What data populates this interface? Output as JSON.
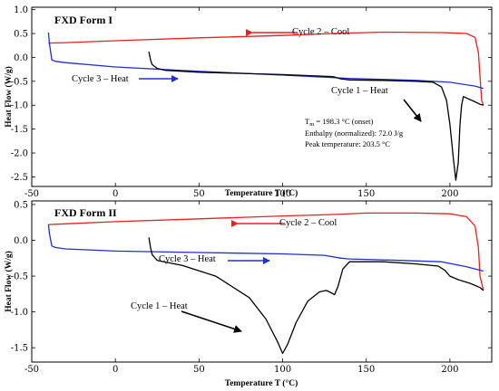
{
  "colors": {
    "cycle1": "#000000",
    "cycle2": "#e82020",
    "cycle3": "#1f2fd6"
  },
  "chart_data": [
    {
      "type": "line",
      "title": "FXD Form I",
      "xlabel": "Temperature T (°C)",
      "ylabel": "Heat Flow (W/g)",
      "xlim": [
        -50,
        225
      ],
      "ylim": [
        -2.7,
        1.05
      ],
      "xticks": [
        -50,
        0,
        50,
        100,
        150,
        200
      ],
      "xtick_labels": [
        "-50",
        "0",
        "50",
        "100",
        "150",
        "200"
      ],
      "yticks": [
        1.0,
        0.5,
        0.0,
        -0.5,
        -1.0,
        -1.5,
        -2.0,
        -2.5
      ],
      "ytick_labels": [
        "1.0",
        "0.5",
        "0.0",
        "-0.5",
        "-1.0",
        "-1.5",
        "-2.0",
        "-2.5"
      ],
      "series": [
        {
          "name": "Cycle 2 – Cool",
          "color_key": "cycle2",
          "points": [
            [
              -40,
              0.3
            ],
            [
              -30,
              0.31
            ],
            [
              0,
              0.35
            ],
            [
              50,
              0.41
            ],
            [
              100,
              0.46
            ],
            [
              130,
              0.5
            ],
            [
              160,
              0.53
            ],
            [
              195,
              0.52
            ],
            [
              210,
              0.5
            ],
            [
              215,
              0.42
            ],
            [
              217,
              0.1
            ],
            [
              218,
              -0.4
            ],
            [
              219,
              -0.9
            ],
            [
              220,
              -1.0
            ]
          ]
        },
        {
          "name": "Cycle 3 – Heat",
          "color_key": "cycle3",
          "points": [
            [
              -40,
              0.52
            ],
            [
              -39.5,
              0.3
            ],
            [
              -38,
              -0.05
            ],
            [
              -36,
              -0.08
            ],
            [
              -30,
              -0.11
            ],
            [
              0,
              -0.2
            ],
            [
              50,
              -0.29
            ],
            [
              100,
              -0.37
            ],
            [
              140,
              -0.44
            ],
            [
              180,
              -0.48
            ],
            [
              200,
              -0.52
            ],
            [
              215,
              -0.6
            ],
            [
              220,
              -0.65
            ]
          ]
        },
        {
          "name": "Cycle 1 – Heat",
          "color_key": "cycle1",
          "points": [
            [
              20,
              0.12
            ],
            [
              21,
              -0.05
            ],
            [
              22,
              -0.15
            ],
            [
              25,
              -0.23
            ],
            [
              30,
              -0.27
            ],
            [
              50,
              -0.31
            ],
            [
              100,
              -0.36
            ],
            [
              130,
              -0.4
            ],
            [
              135,
              -0.45
            ],
            [
              140,
              -0.47
            ],
            [
              160,
              -0.48
            ],
            [
              180,
              -0.5
            ],
            [
              190,
              -0.52
            ],
            [
              195,
              -0.62
            ],
            [
              198,
              -0.9
            ],
            [
              200,
              -1.4
            ],
            [
              202,
              -2.1
            ],
            [
              203.5,
              -2.57
            ],
            [
              205,
              -2.2
            ],
            [
              206,
              -1.4
            ],
            [
              207,
              -1.0
            ],
            [
              208,
              -0.82
            ],
            [
              210,
              -0.85
            ],
            [
              215,
              -0.93
            ],
            [
              218,
              -0.98
            ],
            [
              220,
              -1.0
            ]
          ]
        }
      ],
      "annotations": {
        "cycle2_label": "Cycle 2 – Cool",
        "cycle3_label": "Cycle 3 – Heat",
        "cycle1_label": "Cycle 1 – Heat",
        "tm_symbol": "T",
        "tm_subscript": "m",
        "tm_text": " = 198.3 °C (onset)",
        "enthalpy": "Enthalpy (normalized): 72.0 J/g",
        "peak": "Peak temperature: 203.5 °C"
      }
    },
    {
      "type": "line",
      "title": "FXD Form II",
      "xlabel": "Temperature T (°C)",
      "ylabel": "Heat Flow (W/g)",
      "xlim": [
        -50,
        225
      ],
      "ylim": [
        -1.7,
        0.55
      ],
      "xticks": [
        -50,
        0,
        50,
        100,
        150,
        200
      ],
      "xtick_labels": [
        "-50",
        "0",
        "50",
        "100",
        "150",
        "200"
      ],
      "yticks": [
        0.5,
        0.0,
        -0.5,
        -1.0,
        -1.5
      ],
      "ytick_labels": [
        "0.5",
        "0.0",
        "-0.5",
        "-1.0",
        "-1.5"
      ],
      "series": [
        {
          "name": "Cycle 2 – Cool",
          "color_key": "cycle2",
          "points": [
            [
              -40,
              0.22
            ],
            [
              -30,
              0.23
            ],
            [
              0,
              0.26
            ],
            [
              50,
              0.3
            ],
            [
              100,
              0.34
            ],
            [
              130,
              0.36
            ],
            [
              150,
              0.38
            ],
            [
              180,
              0.38
            ],
            [
              200,
              0.37
            ],
            [
              210,
              0.33
            ],
            [
              215,
              0.2
            ],
            [
              217,
              -0.1
            ],
            [
              218,
              -0.5
            ],
            [
              220,
              -0.7
            ]
          ]
        },
        {
          "name": "Cycle 3 – Heat",
          "color_key": "cycle3",
          "points": [
            [
              -40,
              0.22
            ],
            [
              -39.5,
              0.1
            ],
            [
              -38,
              -0.08
            ],
            [
              -36,
              -0.1
            ],
            [
              -30,
              -0.12
            ],
            [
              0,
              -0.15
            ],
            [
              50,
              -0.17
            ],
            [
              100,
              -0.19
            ],
            [
              125,
              -0.21
            ],
            [
              135,
              -0.25
            ],
            [
              140,
              -0.26
            ],
            [
              170,
              -0.28
            ],
            [
              195,
              -0.3
            ],
            [
              210,
              -0.37
            ],
            [
              220,
              -0.43
            ]
          ]
        },
        {
          "name": "Cycle 1 – Heat",
          "color_key": "cycle1",
          "points": [
            [
              20,
              0.04
            ],
            [
              21,
              -0.1
            ],
            [
              22,
              -0.2
            ],
            [
              25,
              -0.28
            ],
            [
              40,
              -0.35
            ],
            [
              60,
              -0.5
            ],
            [
              80,
              -0.8
            ],
            [
              90,
              -1.1
            ],
            [
              97,
              -1.42
            ],
            [
              100,
              -1.58
            ],
            [
              103,
              -1.45
            ],
            [
              108,
              -1.15
            ],
            [
              115,
              -0.85
            ],
            [
              122,
              -0.72
            ],
            [
              126,
              -0.7
            ],
            [
              128,
              -0.72
            ],
            [
              131,
              -0.76
            ],
            [
              133,
              -0.65
            ],
            [
              136,
              -0.4
            ],
            [
              140,
              -0.3
            ],
            [
              150,
              -0.3
            ],
            [
              160,
              -0.3
            ],
            [
              180,
              -0.33
            ],
            [
              193,
              -0.36
            ],
            [
              197,
              -0.42
            ],
            [
              200,
              -0.5
            ],
            [
              205,
              -0.55
            ],
            [
              212,
              -0.6
            ],
            [
              218,
              -0.66
            ],
            [
              220,
              -0.7
            ]
          ]
        }
      ],
      "annotations": {
        "cycle2_label": "Cycle 2 – Cool",
        "cycle3_label": "Cycle 3 – Heat",
        "cycle1_label": "Cycle 1 – Heat"
      }
    }
  ]
}
